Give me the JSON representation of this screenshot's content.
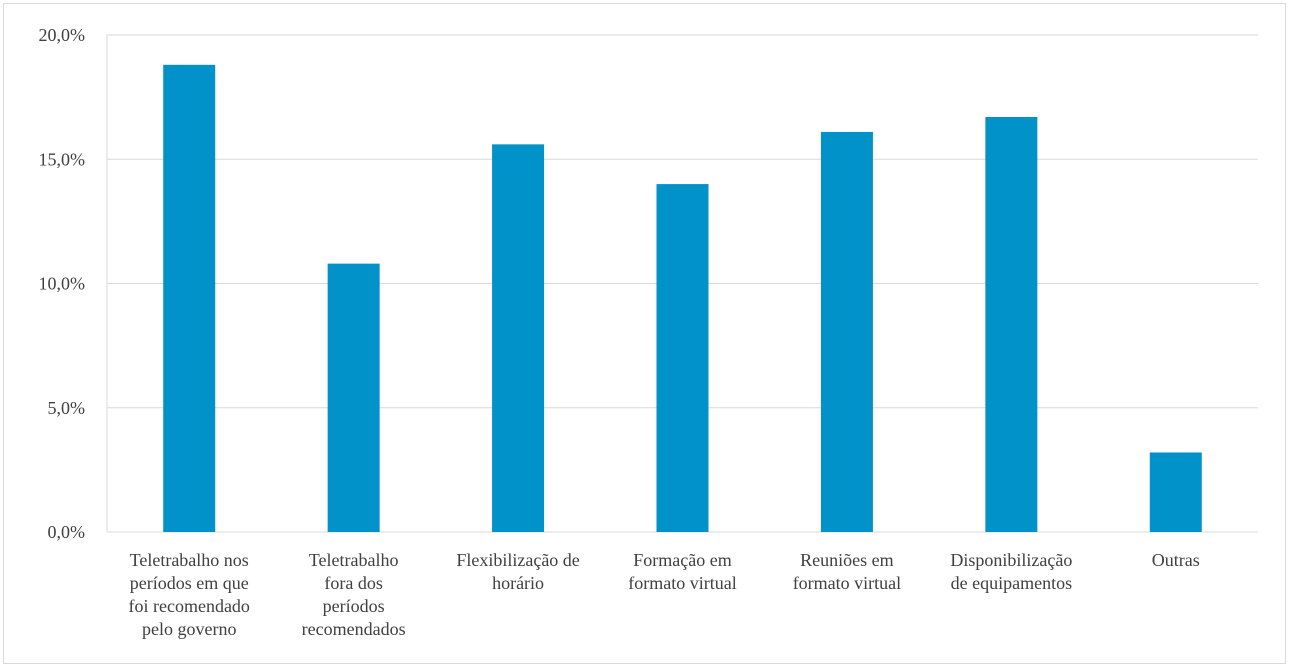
{
  "chart_data": {
    "type": "bar",
    "title": "",
    "xlabel": "",
    "ylabel": "",
    "categories": [
      [
        "Teletrabalho nos",
        "períodos em que",
        "foi recomendado",
        "pelo governo"
      ],
      [
        "Teletrabalho",
        "fora dos",
        "períodos",
        "recomendados"
      ],
      [
        "Flexibilização de",
        "horário"
      ],
      [
        "Formação em",
        "formato virtual"
      ],
      [
        "Reuniões em",
        "formato virtual"
      ],
      [
        "Disponibilização",
        "de equipamentos"
      ],
      [
        "Outras"
      ]
    ],
    "values": [
      18.8,
      10.8,
      15.6,
      14.0,
      16.1,
      16.7,
      3.2
    ],
    "ylim": [
      0,
      20
    ],
    "yticks": [
      0,
      5,
      10,
      15,
      20
    ],
    "ytick_labels": [
      "0,0%",
      "5,0%",
      "10,0%",
      "15,0%",
      "20,0%"
    ],
    "grid": true,
    "legend": "none",
    "bar_color": "#0092c8",
    "grid_color": "#d9d9d9"
  }
}
